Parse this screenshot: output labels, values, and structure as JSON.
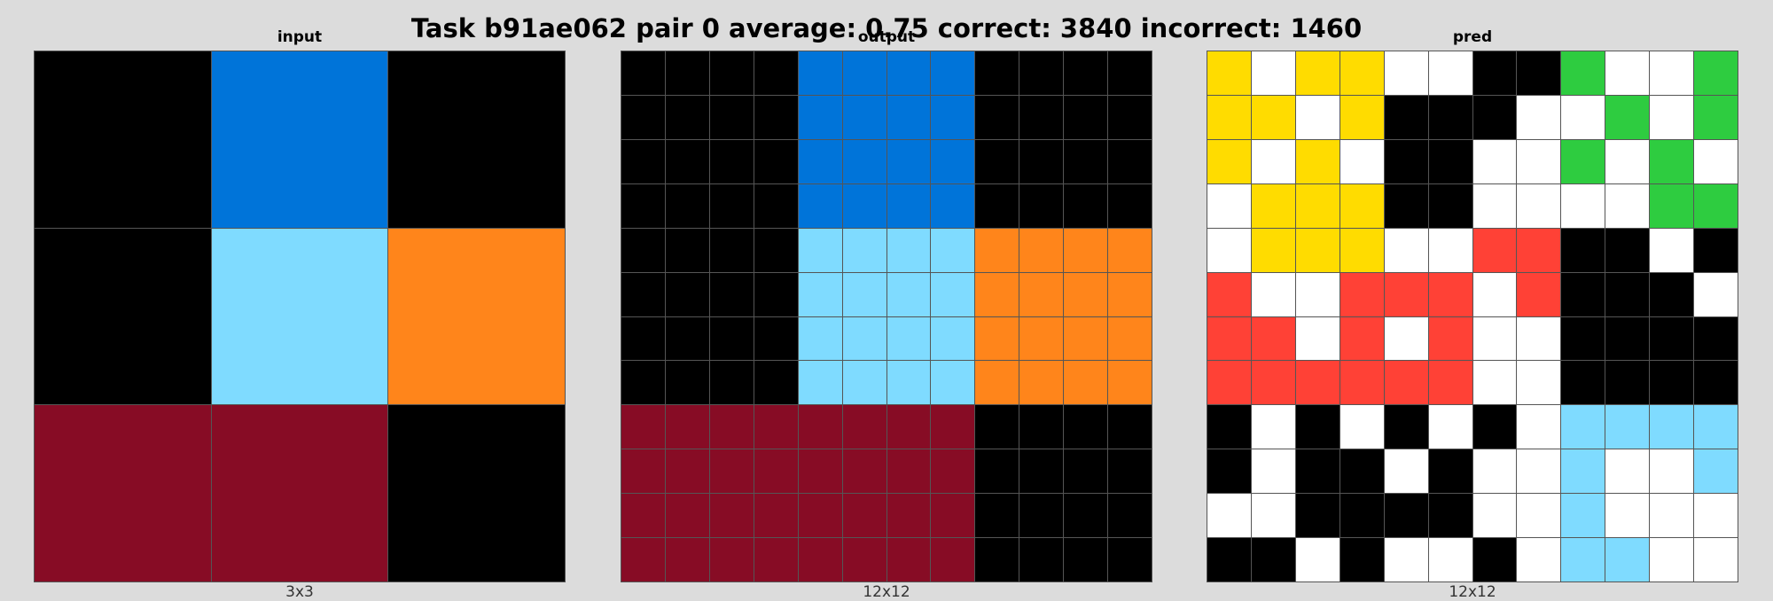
{
  "title": "Task b91ae062 pair 0 average: 0.75 correct: 3840 incorrect: 1460",
  "colors": {
    "0": "#000000",
    "1": "#0074d9",
    "2": "#ff4136",
    "3": "#2ecc40",
    "4": "#ffdc00",
    "5": "#ffffff",
    "6": "#f012be",
    "7": "#ff851b",
    "8": "#7fdbff",
    "9": "#870c25"
  },
  "panels": [
    {
      "label": "input",
      "size_label": "3x3",
      "grid": [
        [
          0,
          1,
          0
        ],
        [
          0,
          8,
          7
        ],
        [
          9,
          9,
          0
        ]
      ]
    },
    {
      "label": "output",
      "size_label": "12x12",
      "grid": [
        [
          0,
          0,
          0,
          0,
          1,
          1,
          1,
          1,
          0,
          0,
          0,
          0
        ],
        [
          0,
          0,
          0,
          0,
          1,
          1,
          1,
          1,
          0,
          0,
          0,
          0
        ],
        [
          0,
          0,
          0,
          0,
          1,
          1,
          1,
          1,
          0,
          0,
          0,
          0
        ],
        [
          0,
          0,
          0,
          0,
          1,
          1,
          1,
          1,
          0,
          0,
          0,
          0
        ],
        [
          0,
          0,
          0,
          0,
          8,
          8,
          8,
          8,
          7,
          7,
          7,
          7
        ],
        [
          0,
          0,
          0,
          0,
          8,
          8,
          8,
          8,
          7,
          7,
          7,
          7
        ],
        [
          0,
          0,
          0,
          0,
          8,
          8,
          8,
          8,
          7,
          7,
          7,
          7
        ],
        [
          0,
          0,
          0,
          0,
          8,
          8,
          8,
          8,
          7,
          7,
          7,
          7
        ],
        [
          9,
          9,
          9,
          9,
          9,
          9,
          9,
          9,
          0,
          0,
          0,
          0
        ],
        [
          9,
          9,
          9,
          9,
          9,
          9,
          9,
          9,
          0,
          0,
          0,
          0
        ],
        [
          9,
          9,
          9,
          9,
          9,
          9,
          9,
          9,
          0,
          0,
          0,
          0
        ],
        [
          9,
          9,
          9,
          9,
          9,
          9,
          9,
          9,
          0,
          0,
          0,
          0
        ]
      ]
    },
    {
      "label": "pred",
      "size_label": "12x12",
      "grid": [
        [
          4,
          5,
          4,
          4,
          5,
          5,
          0,
          0,
          3,
          5,
          5,
          3
        ],
        [
          4,
          4,
          5,
          4,
          0,
          0,
          0,
          5,
          5,
          3,
          5,
          3
        ],
        [
          4,
          5,
          4,
          5,
          0,
          0,
          5,
          5,
          3,
          5,
          3,
          5
        ],
        [
          5,
          4,
          4,
          4,
          0,
          0,
          5,
          5,
          5,
          5,
          3,
          3
        ],
        [
          5,
          4,
          4,
          4,
          5,
          5,
          2,
          2,
          0,
          0,
          5,
          0
        ],
        [
          2,
          5,
          5,
          2,
          2,
          2,
          5,
          2,
          0,
          0,
          0,
          5
        ],
        [
          2,
          2,
          5,
          2,
          5,
          2,
          5,
          5,
          0,
          0,
          0,
          0
        ],
        [
          2,
          2,
          2,
          2,
          2,
          2,
          5,
          5,
          0,
          0,
          0,
          0
        ],
        [
          0,
          5,
          0,
          5,
          0,
          5,
          0,
          5,
          8,
          8,
          8,
          8
        ],
        [
          0,
          5,
          0,
          0,
          5,
          0,
          5,
          5,
          8,
          5,
          5,
          8
        ],
        [
          5,
          5,
          0,
          0,
          0,
          0,
          5,
          5,
          8,
          5,
          5,
          5
        ],
        [
          0,
          0,
          5,
          0,
          5,
          5,
          0,
          5,
          8,
          8,
          5,
          5
        ]
      ]
    }
  ]
}
